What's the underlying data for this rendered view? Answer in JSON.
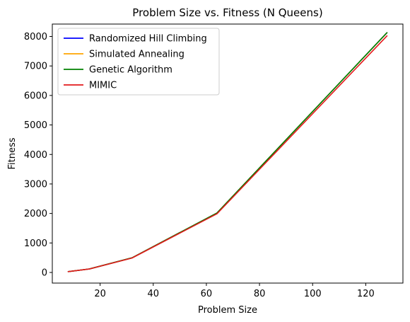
{
  "chart_data": {
    "type": "line",
    "title": "Problem Size vs. Fitness (N Queens)",
    "xlabel": "Problem Size",
    "ylabel": "Fitness",
    "xlim": [
      2,
      134
    ],
    "ylim": [
      -360,
      8420
    ],
    "xticks": [
      20,
      40,
      60,
      80,
      100,
      120
    ],
    "yticks": [
      0,
      1000,
      2000,
      3000,
      4000,
      5000,
      6000,
      7000,
      8000
    ],
    "grid": false,
    "legend_position": "top-left",
    "x": [
      8,
      16,
      32,
      64,
      128
    ],
    "series": [
      {
        "name": "Randomized Hill Climbing",
        "color": "#0000ff",
        "values": [
          28,
          120,
          496,
          2016,
          8128
        ]
      },
      {
        "name": "Simulated Annealing",
        "color": "#ffa500",
        "values": [
          28,
          120,
          496,
          2016,
          8128
        ]
      },
      {
        "name": "Genetic Algorithm",
        "color": "#008000",
        "values": [
          28,
          120,
          496,
          2016,
          8128
        ]
      },
      {
        "name": "MIMIC",
        "color": "#e31a1c",
        "values": [
          28,
          118,
          489,
          1990,
          8020
        ]
      }
    ]
  }
}
